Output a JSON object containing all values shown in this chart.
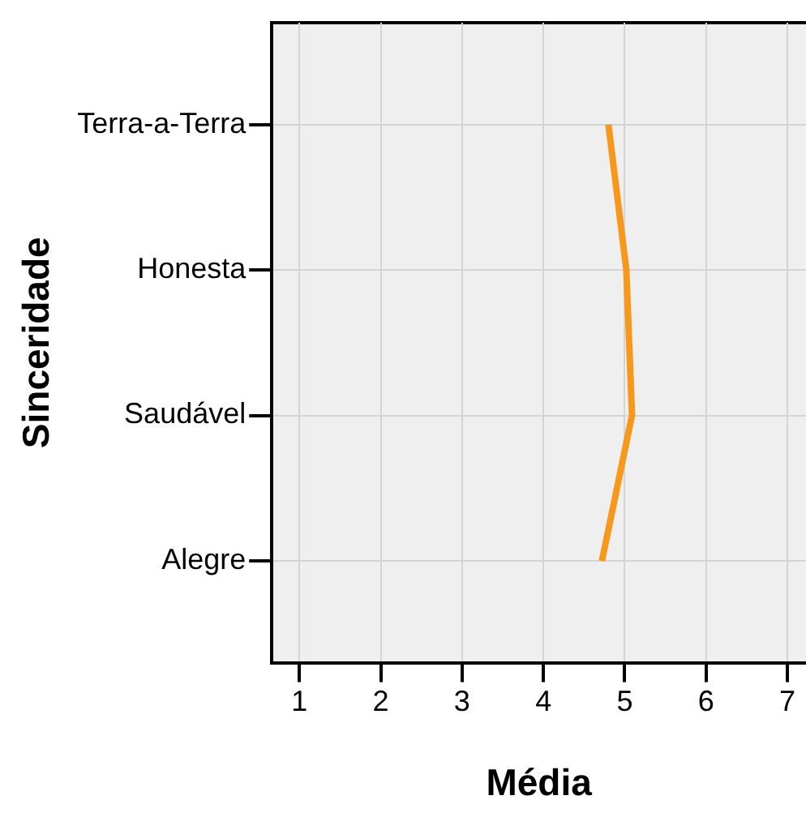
{
  "chart_data": {
    "type": "line",
    "orientation": "horizontal",
    "xlabel": "Média",
    "ylabel": "Sinceridade",
    "categories": [
      "Terra-a-Terra",
      "Honesta",
      "Saudável",
      "Alegre"
    ],
    "series": [
      {
        "color": "#f7981d",
        "values": [
          4.8,
          5.02,
          5.09,
          4.72
        ]
      }
    ],
    "xlim": [
      0.66,
      7.23
    ],
    "xticks": [
      1,
      2,
      3,
      4,
      5,
      6,
      7
    ],
    "grid": true,
    "legend": false,
    "marker": "none",
    "line_style": "solid"
  }
}
